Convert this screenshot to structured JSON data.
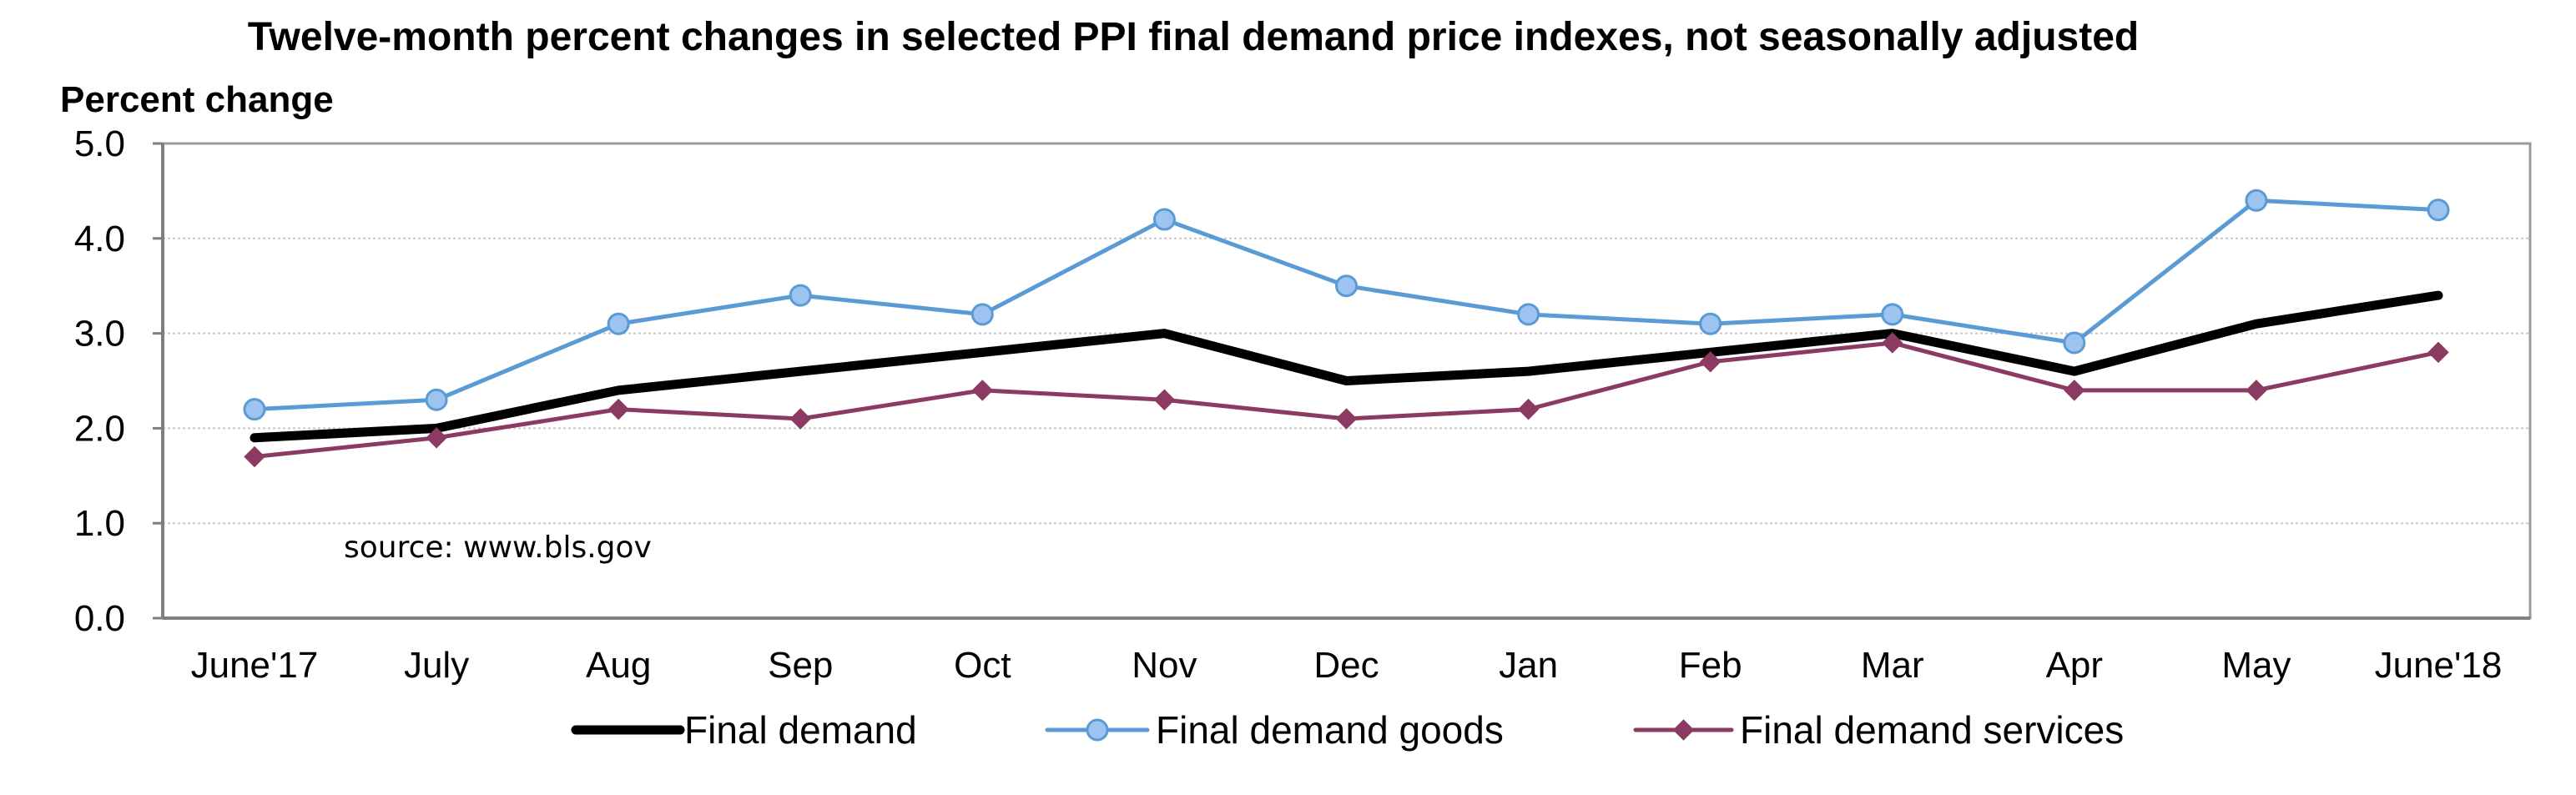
{
  "chart_data": {
    "type": "line",
    "title": "Twelve-month percent changes in selected PPI final demand price indexes, not seasonally adjusted",
    "ylabel": "Percent change",
    "xlabel": "",
    "ylim": [
      0,
      5
    ],
    "yticks": [
      "0.0",
      "1.0",
      "2.0",
      "3.0",
      "4.0",
      "5.0"
    ],
    "categories": [
      "June'17",
      "July",
      "Aug",
      "Sep",
      "Oct",
      "Nov",
      "Dec",
      "Jan",
      "Feb",
      "Mar",
      "Apr",
      "May",
      "June'18"
    ],
    "series": [
      {
        "name": "Final demand",
        "color": "#000000",
        "marker": "none",
        "values": [
          1.9,
          2.0,
          2.4,
          2.6,
          2.8,
          3.0,
          2.5,
          2.6,
          2.8,
          3.0,
          2.6,
          3.1,
          3.4
        ]
      },
      {
        "name": "Final demand goods",
        "color": "#5B9BD5",
        "marker_fill": "#9DC3F0",
        "marker": "circle",
        "values": [
          2.2,
          2.3,
          3.1,
          3.4,
          3.2,
          4.2,
          3.5,
          3.2,
          3.1,
          3.2,
          2.9,
          4.4,
          4.3
        ]
      },
      {
        "name": "Final demand services",
        "color": "#8B3A62",
        "marker": "diamond",
        "values": [
          1.7,
          1.9,
          2.2,
          2.1,
          2.4,
          2.3,
          2.1,
          2.2,
          2.7,
          2.9,
          2.4,
          2.4,
          2.8
        ]
      }
    ],
    "grid": true,
    "legend_position": "bottom",
    "annotation": "source: www.bls.gov"
  }
}
